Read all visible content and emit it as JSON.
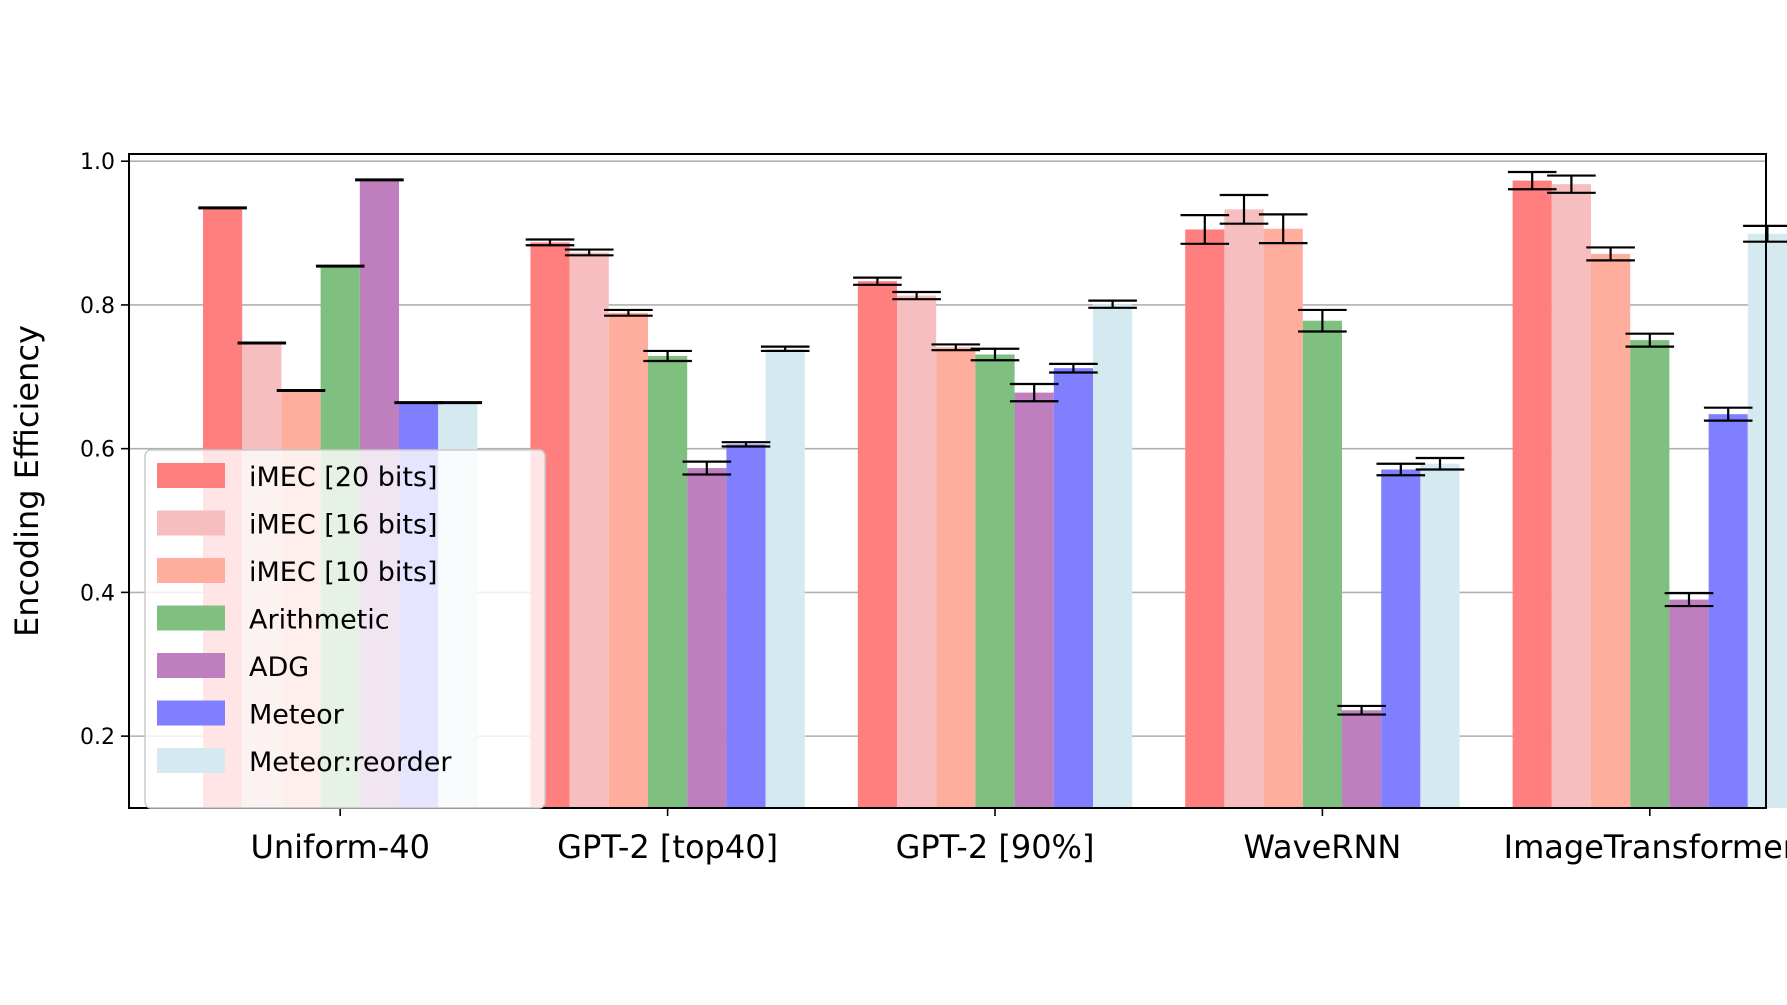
{
  "chart_data": {
    "type": "bar",
    "title": "",
    "xlabel": "",
    "ylabel": "Encoding Efficiency",
    "ylim": [
      0.1,
      1.01
    ],
    "yticks": [
      0.2,
      0.4,
      0.6,
      0.8,
      1.0
    ],
    "ytick_labels": [
      "0.2",
      "0.4",
      "0.6",
      "0.8",
      "1.0"
    ],
    "grid": "horizontal",
    "legend_position": "lower-left",
    "categories": [
      "Uniform-40",
      "GPT-2 [top40]",
      "GPT-2 [90%]",
      "WaveRNN",
      "ImageTransformer"
    ],
    "series": [
      {
        "name": "iMEC [20 bits]",
        "color": "#ff7f7f",
        "values": [
          0.935,
          0.887,
          0.833,
          0.905,
          0.973
        ],
        "errors": [
          0.0,
          0.004,
          0.005,
          0.02,
          0.012
        ]
      },
      {
        "name": "iMEC [16 bits]",
        "color": "#f6bebe",
        "values": [
          0.747,
          0.873,
          0.813,
          0.933,
          0.968
        ],
        "errors": [
          0.0,
          0.004,
          0.005,
          0.02,
          0.012
        ]
      },
      {
        "name": "iMEC [10 bits]",
        "color": "#ffae9e",
        "values": [
          0.681,
          0.789,
          0.741,
          0.906,
          0.871
        ],
        "errors": [
          0.0,
          0.004,
          0.004,
          0.02,
          0.009
        ]
      },
      {
        "name": "Arithmetic",
        "color": "#7fbf7f",
        "values": [
          0.854,
          0.729,
          0.731,
          0.778,
          0.751
        ],
        "errors": [
          0.0,
          0.007,
          0.008,
          0.015,
          0.009
        ]
      },
      {
        "name": "ADG",
        "color": "#bf7fbf",
        "values": [
          0.974,
          0.573,
          0.678,
          0.236,
          0.39
        ],
        "errors": [
          0.0,
          0.009,
          0.012,
          0.006,
          0.009
        ]
      },
      {
        "name": "Meteor",
        "color": "#7f7fff",
        "values": [
          0.664,
          0.606,
          0.712,
          0.571,
          0.648
        ],
        "errors": [
          0.0,
          0.003,
          0.006,
          0.008,
          0.009
        ]
      },
      {
        "name": "Meteor:reorder",
        "color": "#d5eaf0",
        "values": [
          0.664,
          0.739,
          0.801,
          0.579,
          0.899
        ],
        "errors": [
          0.0,
          0.003,
          0.005,
          0.008,
          0.011
        ]
      }
    ]
  }
}
